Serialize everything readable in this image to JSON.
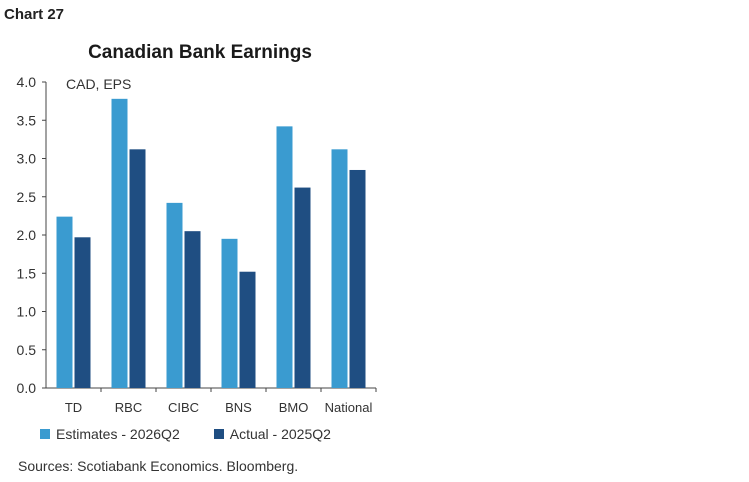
{
  "header": {
    "chart_label": "Chart 27"
  },
  "chart_data": {
    "type": "bar",
    "title": "Canadian Bank Earnings",
    "unit_label": "CAD, EPS",
    "categories": [
      "TD",
      "RBC",
      "CIBC",
      "BNS",
      "BMO",
      "National"
    ],
    "series": [
      {
        "name": "Estimates - 2026Q2",
        "color": "#3a9bd0",
        "values": [
          2.24,
          3.78,
          2.42,
          1.95,
          3.42,
          3.12
        ]
      },
      {
        "name": "Actual - 2025Q2",
        "color": "#1f4e82",
        "values": [
          1.97,
          3.12,
          2.05,
          1.52,
          2.62,
          2.85
        ]
      }
    ],
    "ylim": [
      0,
      4.0
    ],
    "yticks": [
      "0.0",
      "0.5",
      "1.0",
      "1.5",
      "2.0",
      "2.5",
      "3.0",
      "3.5",
      "4.0"
    ],
    "grid": false,
    "legend_position": "bottom"
  },
  "footer": {
    "source": "Sources: Scotiabank Economics. Bloomberg."
  }
}
